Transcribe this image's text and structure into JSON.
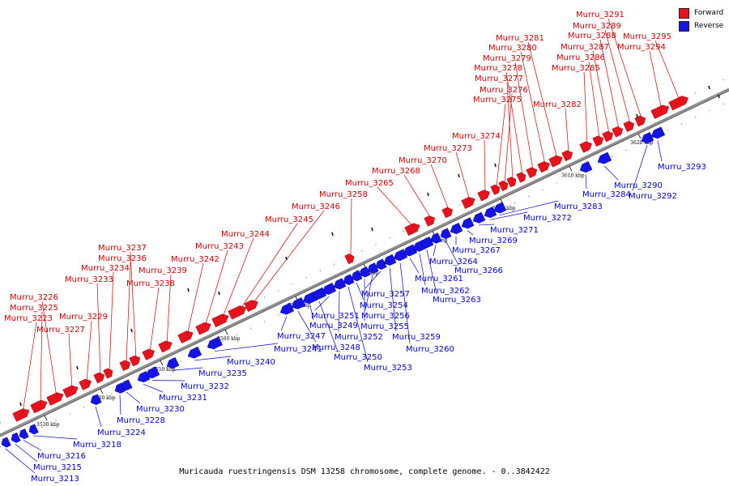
{
  "caption": "Muricauda ruestringensis DSM 13258 chromosome, complete genome. - 0..3842422",
  "legend": [
    {
      "label": "Forward",
      "color": "#e8121c"
    },
    {
      "label": "Reverse",
      "color": "#1414e6"
    }
  ],
  "colors": {
    "forward": "#e8121c",
    "reverse": "#1414e6",
    "forward_label": "#cc0000",
    "reverse_label": "#0000cc",
    "backbone": "#8f8f8f"
  },
  "ticks": [
    "3530 kbp",
    "3540 kbp",
    "3550 kbp",
    "3560 kbp",
    "3570 kbp",
    "3580 kbp",
    "3590 kbp",
    "3600 kbp",
    "3610 kbp",
    "3620 kbp"
  ],
  "forward_genes": [
    "Murru_3223",
    "Murru_3225",
    "Murru_3226",
    "Murru_3227",
    "Murru_3229",
    "Murru_3233",
    "Murru_3234",
    "Murru_3236",
    "Murru_3237",
    "Murru_3238",
    "Murru_3239",
    "Murru_3242",
    "Murru_3243",
    "Murru_3244",
    "Murru_3245",
    "Murru_3246",
    "Murru_3258",
    "Murru_3265",
    "Murru_3268",
    "Murru_3270",
    "Murru_3273",
    "Murru_3274",
    "Murru_3275",
    "Murru_3276",
    "Murru_3277",
    "Murru_3278",
    "Murru_3279",
    "Murru_3280",
    "Murru_3281",
    "Murru_3282",
    "Murru_3285",
    "Murru_3286",
    "Murru_3287",
    "Murru_3288",
    "Murru_3289",
    "Murru_3291",
    "Murru_3294",
    "Murru_3295"
  ],
  "reverse_genes": [
    "Murru_3213",
    "Murru_3215",
    "Murru_3216",
    "Murru_3218",
    "Murru_3224",
    "Murru_3228",
    "Murru_3230",
    "Murru_3231",
    "Murru_3232",
    "Murru_3235",
    "Murru_3240",
    "Murru_3241",
    "Murru_3247",
    "Murru_3248",
    "Murru_3249",
    "Murru_3250",
    "Murru_3251",
    "Murru_3252",
    "Murru_3253",
    "Murru_3254",
    "Murru_3255",
    "Murru_3256",
    "Murru_3257",
    "Murru_3259",
    "Murru_3260",
    "Murru_3261",
    "Murru_3262",
    "Murru_3263",
    "Murru_3264",
    "Murru_3266",
    "Murru_3267",
    "Murru_3269",
    "Murru_3271",
    "Murru_3272",
    "Murru_3283",
    "Murru_3284",
    "Murru_3290",
    "Murru_3292",
    "Murru_3293"
  ]
}
